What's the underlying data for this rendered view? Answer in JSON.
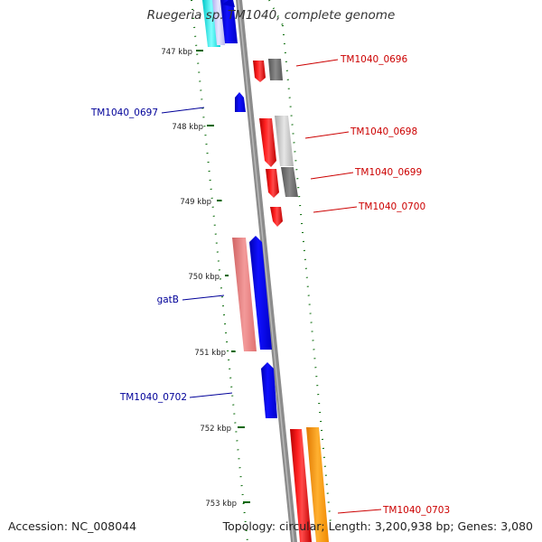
{
  "title": "Ruegeria sp. TM1040, complete genome",
  "footer": {
    "accession": "Accession: NC_008044",
    "summary": "Topology: circular; Length: 3,200,938 bp; Genes: 3,080"
  },
  "colors": {
    "ruler": "#006600",
    "backbone": "#888888",
    "label_left": "#000099",
    "label_right": "#cc0000"
  },
  "ticks": [
    "747 kbp",
    "748 kbp",
    "749 kbp",
    "750 kbp",
    "751 kbp",
    "752 kbp",
    "753 kbp"
  ],
  "genes": [
    {
      "label": "TM1040_0696",
      "side": "right"
    },
    {
      "label": "TM1040_0697",
      "side": "left"
    },
    {
      "label": "TM1040_0698",
      "side": "right"
    },
    {
      "label": "TM1040_0699",
      "side": "right"
    },
    {
      "label": "TM1040_0700",
      "side": "right"
    },
    {
      "label": "gatB",
      "side": "left"
    },
    {
      "label": "TM1040_0702",
      "side": "left"
    },
    {
      "label": "TM1040_0703",
      "side": "right"
    }
  ]
}
